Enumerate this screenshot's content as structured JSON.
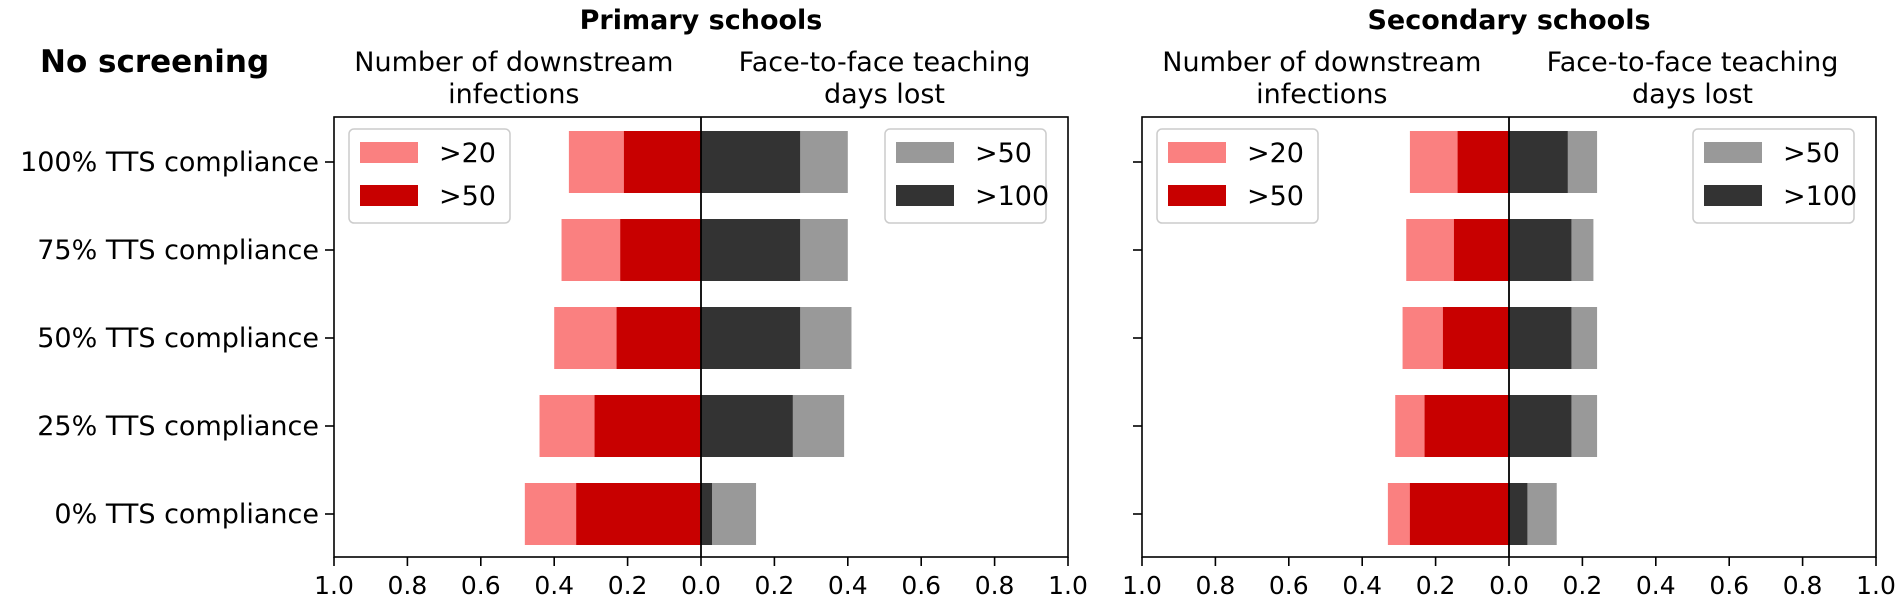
{
  "figure": {
    "scenario_title": "No screening"
  },
  "categories": [
    "100% TTS compliance",
    "75% TTS compliance",
    "50% TTS compliance",
    "25% TTS compliance",
    "0% TTS compliance"
  ],
  "colors": {
    "infections_gt20": "#fa8080",
    "infections_gt50": "#c80000",
    "days_gt50": "#999999",
    "days_gt100": "#333333"
  },
  "chart_data": [
    {
      "type": "bar",
      "orientation": "horizontal-diverging",
      "title": "Primary schools",
      "left_label": "Number of downstream infections",
      "right_label": "Face-to-face teaching days lost",
      "xlim": [
        -1.0,
        1.0
      ],
      "xticks": [
        "1.0",
        "0.8",
        "0.6",
        "0.4",
        "0.2",
        "0.0",
        "0.2",
        "0.4",
        "0.6",
        "0.8",
        "1.0"
      ],
      "categories": [
        "100% TTS compliance",
        "75% TTS compliance",
        "50% TTS compliance",
        "25% TTS compliance",
        "0% TTS compliance"
      ],
      "legend_left": {
        "placement": "top-left",
        "entries": [
          ">20",
          ">50"
        ]
      },
      "legend_right": {
        "placement": "top-right",
        "entries": [
          ">50",
          ">100"
        ]
      },
      "series": [
        {
          "name": ">20",
          "side": "left",
          "values": [
            0.36,
            0.38,
            0.4,
            0.44,
            0.48
          ]
        },
        {
          "name": ">50",
          "side": "left",
          "values": [
            0.21,
            0.22,
            0.23,
            0.29,
            0.34
          ]
        },
        {
          "name": ">50",
          "side": "right",
          "values": [
            0.4,
            0.4,
            0.41,
            0.39,
            0.15
          ]
        },
        {
          "name": ">100",
          "side": "right",
          "values": [
            0.27,
            0.27,
            0.27,
            0.25,
            0.03
          ]
        }
      ]
    },
    {
      "type": "bar",
      "orientation": "horizontal-diverging",
      "title": "Secondary schools",
      "left_label": "Number of downstream infections",
      "right_label": "Face-to-face teaching days lost",
      "xlim": [
        -1.0,
        1.0
      ],
      "xticks": [
        "1.0",
        "0.8",
        "0.6",
        "0.4",
        "0.2",
        "0.0",
        "0.2",
        "0.4",
        "0.6",
        "0.8",
        "1.0"
      ],
      "categories": [
        "100% TTS compliance",
        "75% TTS compliance",
        "50% TTS compliance",
        "25% TTS compliance",
        "0% TTS compliance"
      ],
      "legend_left": {
        "placement": "top-left",
        "entries": [
          ">20",
          ">50"
        ]
      },
      "legend_right": {
        "placement": "top-right",
        "entries": [
          ">50",
          ">100"
        ]
      },
      "series": [
        {
          "name": ">20",
          "side": "left",
          "values": [
            0.27,
            0.28,
            0.29,
            0.31,
            0.33
          ]
        },
        {
          "name": ">50",
          "side": "left",
          "values": [
            0.14,
            0.15,
            0.18,
            0.23,
            0.27
          ]
        },
        {
          "name": ">50",
          "side": "right",
          "values": [
            0.24,
            0.23,
            0.24,
            0.24,
            0.13
          ]
        },
        {
          "name": ">100",
          "side": "right",
          "values": [
            0.16,
            0.17,
            0.17,
            0.17,
            0.05
          ]
        }
      ]
    }
  ]
}
